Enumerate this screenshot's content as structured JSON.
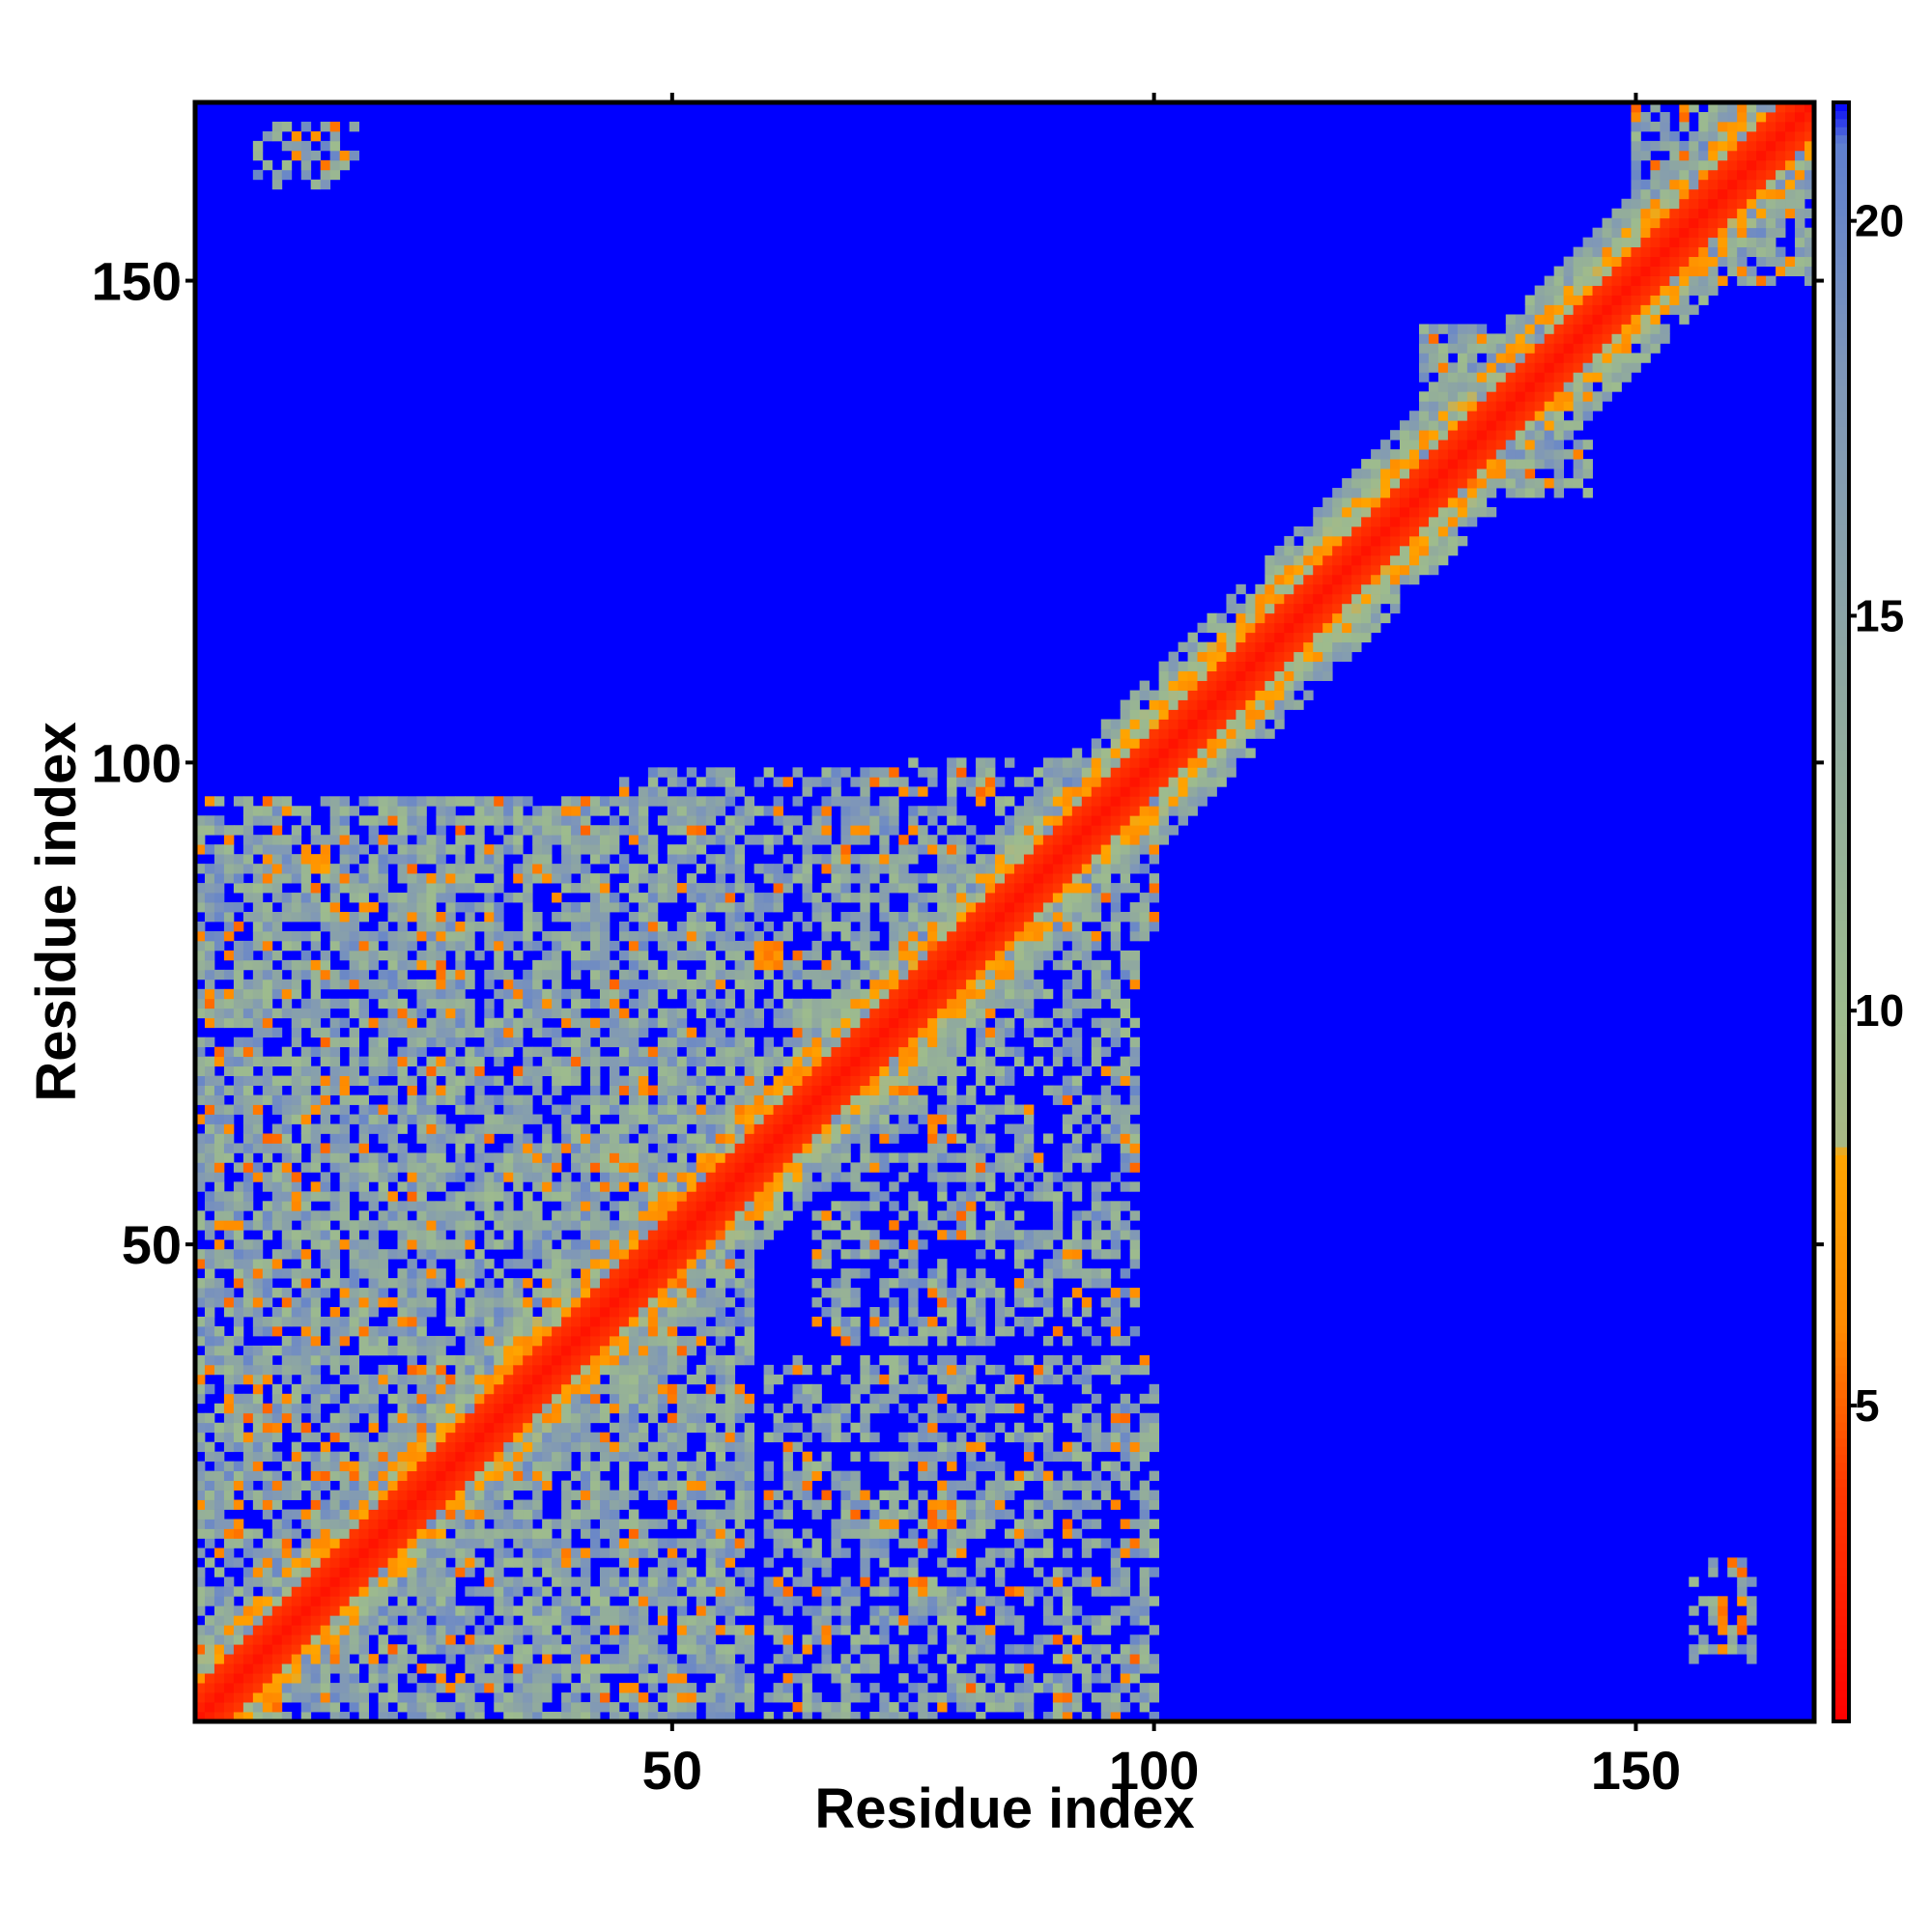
{
  "chart_data": {
    "type": "heatmap",
    "title": "",
    "xlabel": "Residue index",
    "ylabel": "Residue index",
    "xlim": [
      1,
      168
    ],
    "ylim": [
      1,
      168
    ],
    "x_ticks": [
      50,
      100,
      150
    ],
    "y_ticks": [
      50,
      100,
      150
    ],
    "colorbar": {
      "range": [
        1,
        21.5
      ],
      "ticks": [
        5,
        10,
        15,
        20
      ],
      "stops": [
        {
          "value": 1,
          "color": "#ff0000"
        },
        {
          "value": 4,
          "color": "#ff3a00"
        },
        {
          "value": 6,
          "color": "#ff8a00"
        },
        {
          "value": 8.2,
          "color": "#ffa500"
        },
        {
          "value": 8.3,
          "color": "#a9b884"
        },
        {
          "value": 10,
          "color": "#9dbb8e"
        },
        {
          "value": 14,
          "color": "#8fa8a0"
        },
        {
          "value": 18,
          "color": "#7f97b8"
        },
        {
          "value": 21,
          "color": "#5f7fcf"
        },
        {
          "value": 21.5,
          "color": "#0000ff"
        }
      ]
    },
    "background_value": 21.5,
    "diagonal_band": {
      "core_value": 2,
      "inner_width": 3,
      "mid_width": 6,
      "outer_width": 9
    },
    "contact_regions": [
      {
        "x": [
          1,
          58
        ],
        "y": [
          1,
          96
        ],
        "density": 0.75
      },
      {
        "x": [
          45,
          80
        ],
        "y": [
          58,
          99
        ],
        "density": 0.6
      },
      {
        "x": [
          65,
          98
        ],
        "y": [
          40,
          82
        ],
        "density": 0.55
      },
      {
        "x": [
          60,
          100
        ],
        "y": [
          1,
          38
        ],
        "density": 0.55
      },
      {
        "x": [
          75,
          100
        ],
        "y": [
          82,
          100
        ],
        "density": 0.55
      },
      {
        "x": [
          7,
          17
        ],
        "y": [
          160,
          166
        ],
        "density": 0.5
      },
      {
        "x": [
          156,
          162
        ],
        "y": [
          7,
          17
        ],
        "density": 0.5
      },
      {
        "x": [
          128,
          145
        ],
        "y": [
          128,
          145
        ],
        "density": 0.7
      },
      {
        "x": [
          150,
          168
        ],
        "y": [
          150,
          168
        ],
        "density": 0.7
      }
    ],
    "hotspots": [
      {
        "x": 25,
        "y": 78,
        "value": 5
      },
      {
        "x": 60,
        "y": 80,
        "value": 5
      },
      {
        "x": 78,
        "y": 62,
        "value": 5
      },
      {
        "x": 78,
        "y": 22,
        "value": 5
      },
      {
        "x": 12,
        "y": 164,
        "value": 5
      },
      {
        "x": 160,
        "y": 12,
        "value": 5
      },
      {
        "x": 13,
        "y": 90,
        "value": 6
      },
      {
        "x": 30,
        "y": 30,
        "value": 6
      }
    ]
  }
}
